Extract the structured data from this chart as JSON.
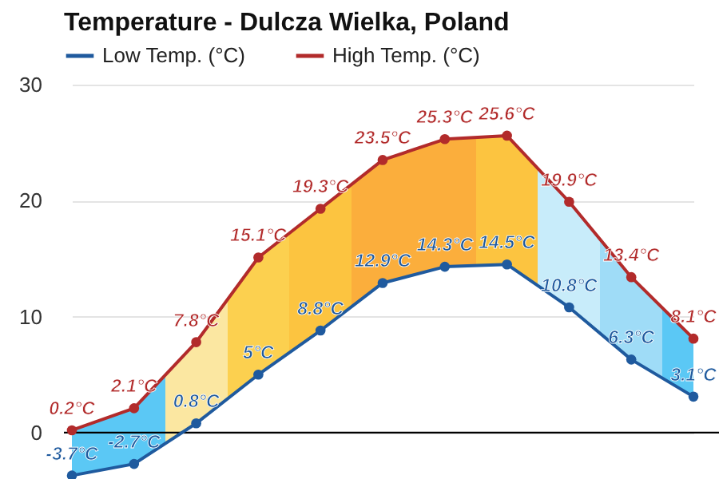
{
  "chart_data": {
    "type": "line",
    "title": "Temperature - Dulcza Wielka, Poland",
    "categories": [
      null,
      null,
      null,
      null,
      null,
      null,
      null,
      null,
      null,
      null,
      null
    ],
    "series": [
      {
        "name": "Low Temp. (°C)",
        "color": "#1f5a9e",
        "values": [
          -3.7,
          -2.7,
          0.8,
          5,
          8.8,
          12.9,
          14.3,
          14.5,
          10.8,
          6.3,
          3.1
        ],
        "value_labels": [
          "-3.7°C",
          "-2.7°C",
          "0.8°C",
          "5°C",
          "8.8°C",
          "12.9°C",
          "14.3°C",
          "14.5°C",
          "10.8°C",
          "6.3°C",
          "3.1°C"
        ]
      },
      {
        "name": "High Temp. (°C)",
        "color": "#b22b2b",
        "values": [
          0.2,
          2.1,
          7.8,
          15.1,
          19.3,
          23.5,
          25.3,
          25.6,
          19.9,
          13.4,
          8.1
        ],
        "value_labels": [
          "0.2°C",
          "2.1°C",
          "7.8°C",
          "15.1°C",
          "19.3°C",
          "23.5°C",
          "25.3°C",
          "25.6°C",
          "19.9°C",
          "13.4°C",
          "8.1°C"
        ],
        "lower": [
          -3.7,
          -2.7,
          0.8,
          5,
          8.8,
          12.9,
          14.3,
          14.5,
          10.8,
          6.3,
          3.1
        ],
        "upper": [
          0.2,
          2.1,
          7.8,
          15.1,
          19.3,
          23.5,
          25.3,
          25.6,
          19.9,
          13.4,
          8.1
        ],
        "colors": [
          "#5bc8f5",
          "#5bc8f5",
          "#fbe7a1",
          "#fcd04f",
          "#fcc440",
          "#fbae3c",
          "#fbae3c",
          "#fcc440",
          "#c8ecfa",
          "#9fdcf7",
          "#5bc8f5"
        ]
      }
    ],
    "ylim": [
      -4,
      30
    ],
    "yticks": [
      0,
      10,
      20,
      30
    ],
    "grid": "y",
    "legend": "top left",
    "marker": "circle",
    "line_style": "solid",
    "tick_labels": "y",
    "ref_lines": [
      {
        "axis": "y",
        "value": 0,
        "color": "#000000"
      }
    ]
  }
}
